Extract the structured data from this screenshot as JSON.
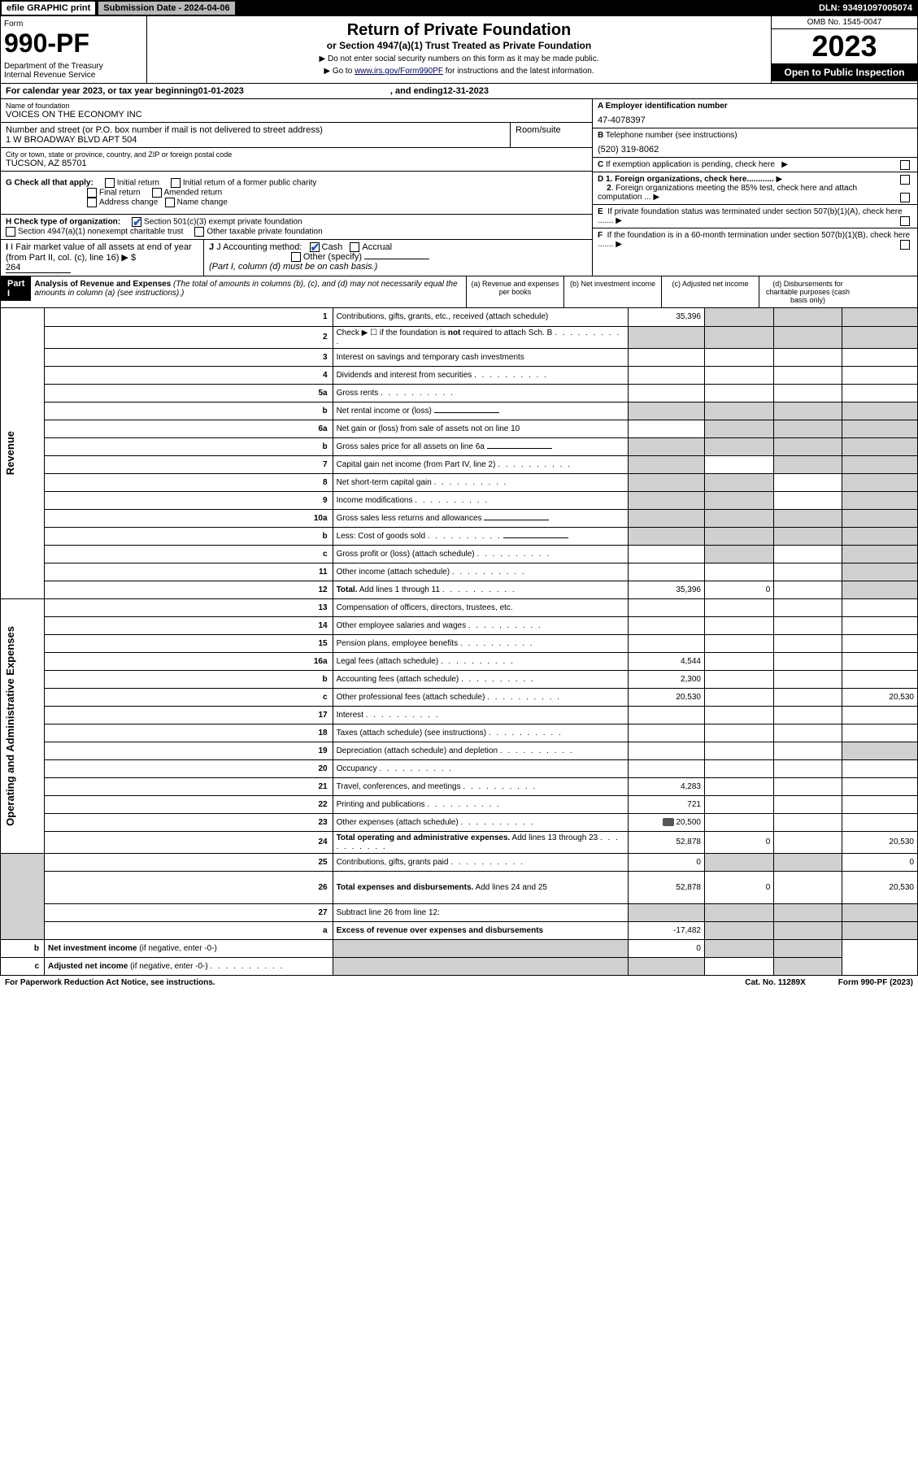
{
  "topbar": {
    "efile": "efile GRAPHIC print",
    "subdate_label": "Submission Date - 2024-04-06",
    "dln": "DLN: 93491097005074"
  },
  "header": {
    "form_label": "Form",
    "form_num": "990-PF",
    "dept": "Department of the Treasury\nInternal Revenue Service",
    "title": "Return of Private Foundation",
    "subtitle": "or Section 4947(a)(1) Trust Treated as Private Foundation",
    "inst1": "▶ Do not enter social security numbers on this form as it may be made public.",
    "inst2_pre": "▶ Go to ",
    "inst2_link": "www.irs.gov/Form990PF",
    "inst2_post": " for instructions and the latest information.",
    "omb": "OMB No. 1545-0047",
    "year": "2023",
    "open": "Open to Public Inspection"
  },
  "calendar": {
    "pre": "For calendar year 2023, or tax year beginning ",
    "begin": "01-01-2023",
    "mid": ", and ending ",
    "end": "12-31-2023"
  },
  "foundation": {
    "name_label": "Name of foundation",
    "name": "VOICES ON THE ECONOMY INC",
    "addr_label": "Number and street (or P.O. box number if mail is not delivered to street address)",
    "addr": "1 W BROADWAY BLVD APT 504",
    "room_label": "Room/suite",
    "city_label": "City or town, state or province, country, and ZIP or foreign postal code",
    "city": "TUCSON, AZ  85701",
    "ein_label": "A Employer identification number",
    "ein": "47-4078397",
    "phone_label": "B Telephone number (see instructions)",
    "phone": "(520) 319-8062",
    "c_label": "C If exemption application is pending, check here",
    "d1": "D 1. Foreign organizations, check here............",
    "d2": "2. Foreign organizations meeting the 85% test, check here and attach computation ...",
    "e_label": "E  If private foundation status was terminated under section 507(b)(1)(A), check here .......",
    "f_label": "F  If the foundation is in a 60-month termination under section 507(b)(1)(B), check here .......",
    "g_label": "G Check all that apply:",
    "g_opts": [
      "Initial return",
      "Initial return of a former public charity",
      "Final return",
      "Amended return",
      "Address change",
      "Name change"
    ],
    "h_label": "H Check type of organization:",
    "h_opts": [
      "Section 501(c)(3) exempt private foundation",
      "Section 4947(a)(1) nonexempt charitable trust",
      "Other taxable private foundation"
    ],
    "i_label": "I Fair market value of all assets at end of year (from Part II, col. (c), line 16)",
    "i_val": "264",
    "j_label": "J Accounting method:",
    "j_cash": "Cash",
    "j_accrual": "Accrual",
    "j_other": "Other (specify)",
    "j_note": "(Part I, column (d) must be on cash basis.)"
  },
  "part1": {
    "label": "Part I",
    "title": "Analysis of Revenue and Expenses",
    "note": " (The total of amounts in columns (b), (c), and (d) may not necessarily equal the amounts in column (a) (see instructions).)",
    "cols": {
      "a": "(a) Revenue and expenses per books",
      "b": "(b) Net investment income",
      "c": "(c) Adjusted net income",
      "d": "(d) Disbursements for charitable purposes (cash basis only)"
    }
  },
  "sections": {
    "revenue": "Revenue",
    "expenses": "Operating and Administrative Expenses"
  },
  "rows": [
    {
      "n": "1",
      "d": "Contributions, gifts, grants, etc., received (attach schedule)",
      "a": "35,396",
      "shade_bcd": true
    },
    {
      "n": "2",
      "d": "Check ▶ ☐ if the foundation is <b>not</b> required to attach Sch. B",
      "dots": true,
      "shade_all": true
    },
    {
      "n": "3",
      "d": "Interest on savings and temporary cash investments"
    },
    {
      "n": "4",
      "d": "Dividends and interest from securities",
      "dots": true
    },
    {
      "n": "5a",
      "d": "Gross rents",
      "dots": true
    },
    {
      "n": "b",
      "d": "Net rental income or (loss)",
      "inline_field": true,
      "shade_all": true
    },
    {
      "n": "6a",
      "d": "Net gain or (loss) from sale of assets not on line 10",
      "shade_bcd": true
    },
    {
      "n": "b",
      "d": "Gross sales price for all assets on line 6a",
      "inline_field": true,
      "shade_all": true
    },
    {
      "n": "7",
      "d": "Capital gain net income (from Part IV, line 2)",
      "dots": true,
      "shade_a": true,
      "shade_cd": true
    },
    {
      "n": "8",
      "d": "Net short-term capital gain",
      "dots": true,
      "shade_ab": true,
      "shade_d": true
    },
    {
      "n": "9",
      "d": "Income modifications",
      "dots": true,
      "shade_ab": true,
      "shade_d": true
    },
    {
      "n": "10a",
      "d": "Gross sales less returns and allowances",
      "inline_field": true,
      "shade_all": true
    },
    {
      "n": "b",
      "d": "Less: Cost of goods sold",
      "dots": true,
      "inline_field": true,
      "shade_all": true
    },
    {
      "n": "c",
      "d": "Gross profit or (loss) (attach schedule)",
      "dots": true,
      "shade_b": true,
      "shade_d": true
    },
    {
      "n": "11",
      "d": "Other income (attach schedule)",
      "dots": true,
      "shade_d": true
    },
    {
      "n": "12",
      "d": "<b>Total.</b> Add lines 1 through 11",
      "dots": true,
      "a": "35,396",
      "b": "0",
      "shade_d": true
    },
    {
      "n": "13",
      "d": "Compensation of officers, directors, trustees, etc."
    },
    {
      "n": "14",
      "d": "Other employee salaries and wages",
      "dots": true
    },
    {
      "n": "15",
      "d": "Pension plans, employee benefits",
      "dots": true
    },
    {
      "n": "16a",
      "d": "Legal fees (attach schedule)",
      "dots": true,
      "a": "4,544"
    },
    {
      "n": "b",
      "d": "Accounting fees (attach schedule)",
      "dots": true,
      "a": "2,300"
    },
    {
      "n": "c",
      "d": "Other professional fees (attach schedule)",
      "dots": true,
      "a": "20,530",
      "dd": "20,530"
    },
    {
      "n": "17",
      "d": "Interest",
      "dots": true
    },
    {
      "n": "18",
      "d": "Taxes (attach schedule) (see instructions)",
      "dots": true
    },
    {
      "n": "19",
      "d": "Depreciation (attach schedule) and depletion",
      "dots": true,
      "shade_d": true
    },
    {
      "n": "20",
      "d": "Occupancy",
      "dots": true
    },
    {
      "n": "21",
      "d": "Travel, conferences, and meetings",
      "dots": true,
      "a": "4,283"
    },
    {
      "n": "22",
      "d": "Printing and publications",
      "dots": true,
      "a": "721"
    },
    {
      "n": "23",
      "d": "Other expenses (attach schedule)",
      "dots": true,
      "a": "20,500",
      "icon": true
    },
    {
      "n": "24",
      "d": "<b>Total operating and administrative expenses.</b> Add lines 13 through 23",
      "dots": true,
      "a": "52,878",
      "b": "0",
      "dd": "20,530"
    },
    {
      "n": "25",
      "d": "Contributions, gifts, grants paid",
      "dots": true,
      "a": "0",
      "shade_bc": true,
      "dd": "0"
    },
    {
      "n": "26",
      "d": "<b>Total expenses and disbursements.</b> Add lines 24 and 25",
      "a": "52,878",
      "b": "0",
      "dd": "20,530",
      "tall": true
    },
    {
      "n": "27",
      "d": "Subtract line 26 from line 12:",
      "shade_all": true
    },
    {
      "n": "a",
      "d": "<b>Excess of revenue over expenses and disbursements</b>",
      "a": "-17,482",
      "shade_bcd": true
    },
    {
      "n": "b",
      "d": "<b>Net investment income</b> (if negative, enter -0-)",
      "shade_a": true,
      "b": "0",
      "shade_cd": true
    },
    {
      "n": "c",
      "d": "<b>Adjusted net income</b> (if negative, enter -0-)",
      "dots": true,
      "shade_ab": true,
      "shade_d": true
    }
  ],
  "footer": {
    "left": "For Paperwork Reduction Act Notice, see instructions.",
    "mid": "Cat. No. 11289X",
    "right": "Form 990-PF (2023)"
  }
}
